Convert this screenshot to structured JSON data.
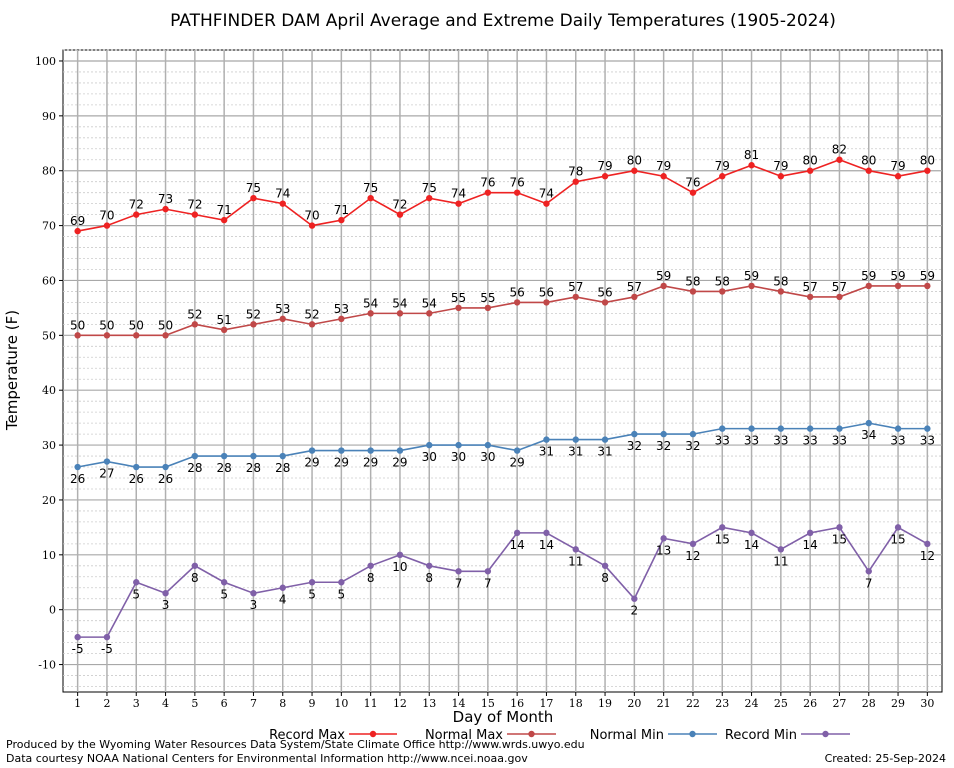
{
  "chart_data": {
    "type": "line",
    "title": "PATHFINDER DAM April Average and Extreme Daily Temperatures (1905-2024)",
    "xlabel": "Day of Month",
    "ylabel": "Temperature (F)",
    "x": [
      1,
      2,
      3,
      4,
      5,
      6,
      7,
      8,
      9,
      10,
      11,
      12,
      13,
      14,
      15,
      16,
      17,
      18,
      19,
      20,
      21,
      22,
      23,
      24,
      25,
      26,
      27,
      28,
      29,
      30
    ],
    "xlim": [
      0.5,
      30.5
    ],
    "ylim": [
      -15,
      102
    ],
    "yticks": [
      -10,
      0,
      10,
      20,
      30,
      40,
      50,
      60,
      70,
      80,
      90,
      100
    ],
    "grid": true,
    "legend_position": "bottom",
    "series": [
      {
        "name": "Record Max",
        "color": "#ee2222",
        "label_position": "above",
        "values": [
          69,
          70,
          72,
          73,
          72,
          71,
          75,
          74,
          70,
          71,
          75,
          72,
          75,
          74,
          76,
          76,
          74,
          78,
          79,
          80,
          79,
          76,
          79,
          81,
          79,
          80,
          82,
          80,
          79,
          80
        ]
      },
      {
        "name": "Normal Max",
        "color": "#c04848",
        "label_position": "above",
        "values": [
          50,
          50,
          50,
          50,
          52,
          51,
          52,
          53,
          52,
          53,
          54,
          54,
          54,
          55,
          55,
          56,
          56,
          57,
          56,
          57,
          59,
          58,
          58,
          59,
          58,
          57,
          57,
          59,
          59,
          59
        ]
      },
      {
        "name": "Normal Min",
        "color": "#4a82b8",
        "label_position": "below",
        "values": [
          26,
          27,
          26,
          26,
          28,
          28,
          28,
          28,
          29,
          29,
          29,
          29,
          30,
          30,
          30,
          29,
          31,
          31,
          31,
          32,
          32,
          32,
          33,
          33,
          33,
          33,
          33,
          34,
          33,
          33
        ]
      },
      {
        "name": "Record Min",
        "color": "#8060a8",
        "label_position": "below",
        "values": [
          -5,
          -5,
          5,
          3,
          8,
          5,
          3,
          4,
          5,
          5,
          8,
          10,
          8,
          7,
          7,
          14,
          14,
          11,
          8,
          2,
          13,
          12,
          15,
          14,
          11,
          14,
          15,
          7,
          15,
          12
        ]
      }
    ]
  },
  "footer": {
    "line1": "Produced by the Wyoming Water Resources Data System/State Climate Office http://www.wrds.uwyo.edu",
    "line2": "Data courtesy NOAA National Centers for Environmental Information http://www.ncei.noaa.gov",
    "created": "Created:  25-Sep-2024"
  }
}
